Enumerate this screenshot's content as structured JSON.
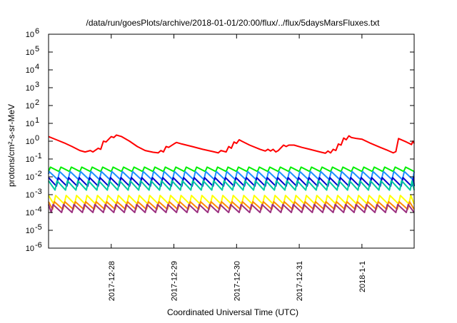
{
  "chart_data": {
    "type": "line",
    "title": "/data/run/goesPlots/archive/2018-01-01/20:00/flux/../flux/5daysMarsFluxes.txt",
    "xlabel": "Coordinated Universal Time (UTC)",
    "ylabel": "protons/cm²-s-sr-MeV",
    "yscale": "log",
    "ylim": [
      1e-06,
      1000000.0
    ],
    "xlim": [
      "2017-12-27 00:00",
      "2018-01-01 20:00"
    ],
    "xticks": [
      {
        "label": "2017-12-28",
        "value": "2017-12-28 00:00"
      },
      {
        "label": "2017-12-29",
        "value": "2017-12-29 00:00"
      },
      {
        "label": "2017-12-30",
        "value": "2017-12-30 00:00"
      },
      {
        "label": "2017-12-31",
        "value": "2017-12-31 00:00"
      },
      {
        "label": "2018-1-1",
        "value": "2018-01-01 00:00"
      }
    ],
    "yticks": [
      {
        "base": "10",
        "exp": "-6",
        "value": 1e-06
      },
      {
        "base": "10",
        "exp": "-5",
        "value": 1e-05
      },
      {
        "base": "10",
        "exp": "-4",
        "value": 0.0001
      },
      {
        "base": "10",
        "exp": "-3",
        "value": 0.001
      },
      {
        "base": "10",
        "exp": "-2",
        "value": 0.01
      },
      {
        "base": "10",
        "exp": "-1",
        "value": 0.1
      },
      {
        "base": "10",
        "exp": "0",
        "value": 1
      },
      {
        "base": "10",
        "exp": "1",
        "value": 10
      },
      {
        "base": "10",
        "exp": "2",
        "value": 100
      },
      {
        "base": "10",
        "exp": "3",
        "value": 1000
      },
      {
        "base": "10",
        "exp": "4",
        "value": 10000
      },
      {
        "base": "10",
        "exp": "5",
        "value": 100000
      },
      {
        "base": "10",
        "exp": "6",
        "value": 1000000
      }
    ],
    "grid": false,
    "legend": "none",
    "series": [
      {
        "color": "#ff0000",
        "points": [
          [
            "2017-12-27 00:00",
            1.8
          ],
          [
            "2017-12-27 03:00",
            1.2
          ],
          [
            "2017-12-27 06:00",
            0.8
          ],
          [
            "2017-12-27 09:00",
            0.5
          ],
          [
            "2017-12-27 12:00",
            0.3
          ],
          [
            "2017-12-27 14:00",
            0.25
          ],
          [
            "2017-12-27 16:00",
            0.3
          ],
          [
            "2017-12-27 17:00",
            0.25
          ],
          [
            "2017-12-27 19:00",
            0.4
          ],
          [
            "2017-12-27 20:00",
            0.35
          ],
          [
            "2017-12-27 21:00",
            1.0
          ],
          [
            "2017-12-27 22:00",
            0.9
          ],
          [
            "2017-12-28 00:00",
            1.8
          ],
          [
            "2017-12-28 01:00",
            1.6
          ],
          [
            "2017-12-28 02:00",
            2.2
          ],
          [
            "2017-12-28 04:00",
            1.8
          ],
          [
            "2017-12-28 07:00",
            1.0
          ],
          [
            "2017-12-28 10:00",
            0.5
          ],
          [
            "2017-12-28 13:00",
            0.3
          ],
          [
            "2017-12-28 16:00",
            0.24
          ],
          [
            "2017-12-28 18:00",
            0.22
          ],
          [
            "2017-12-28 19:00",
            0.3
          ],
          [
            "2017-12-28 20:00",
            0.25
          ],
          [
            "2017-12-28 21:00",
            0.5
          ],
          [
            "2017-12-28 22:00",
            0.45
          ],
          [
            "2017-12-29 00:00",
            0.7
          ],
          [
            "2017-12-29 01:00",
            0.85
          ],
          [
            "2017-12-29 03:00",
            0.7
          ],
          [
            "2017-12-29 07:00",
            0.5
          ],
          [
            "2017-12-29 11:00",
            0.35
          ],
          [
            "2017-12-29 15:00",
            0.26
          ],
          [
            "2017-12-29 17:00",
            0.22
          ],
          [
            "2017-12-29 18:00",
            0.3
          ],
          [
            "2017-12-29 20:00",
            0.25
          ],
          [
            "2017-12-29 21:00",
            0.5
          ],
          [
            "2017-12-29 22:00",
            0.4
          ],
          [
            "2017-12-29 23:00",
            0.9
          ],
          [
            "2017-12-30 00:00",
            0.75
          ],
          [
            "2017-12-30 01:00",
            1.2
          ],
          [
            "2017-12-30 02:00",
            1.0
          ],
          [
            "2017-12-30 05:00",
            0.6
          ],
          [
            "2017-12-30 09:00",
            0.35
          ],
          [
            "2017-12-30 11:00",
            0.28
          ],
          [
            "2017-12-30 12:00",
            0.35
          ],
          [
            "2017-12-30 13:00",
            0.28
          ],
          [
            "2017-12-30 14:00",
            0.35
          ],
          [
            "2017-12-30 15:00",
            0.25
          ],
          [
            "2017-12-30 16:00",
            0.3
          ],
          [
            "2017-12-30 18:00",
            0.6
          ],
          [
            "2017-12-30 19:00",
            0.5
          ],
          [
            "2017-12-30 20:00",
            0.6
          ],
          [
            "2017-12-30 22:00",
            0.6
          ],
          [
            "2017-12-31 01:00",
            0.45
          ],
          [
            "2017-12-31 04:00",
            0.35
          ],
          [
            "2017-12-31 08:00",
            0.25
          ],
          [
            "2017-12-31 10:00",
            0.21
          ],
          [
            "2017-12-31 11:00",
            0.28
          ],
          [
            "2017-12-31 12:00",
            0.22
          ],
          [
            "2017-12-31 13:00",
            0.35
          ],
          [
            "2017-12-31 14:00",
            0.3
          ],
          [
            "2017-12-31 15:00",
            0.7
          ],
          [
            "2017-12-31 16:00",
            0.6
          ],
          [
            "2017-12-31 17:00",
            1.5
          ],
          [
            "2017-12-31 18:00",
            1.2
          ],
          [
            "2017-12-31 19:00",
            2.0
          ],
          [
            "2017-12-31 20:00",
            1.6
          ],
          [
            "2017-12-31 22:00",
            1.4
          ],
          [
            "2018-01-01 00:00",
            1.3
          ],
          [
            "2018-01-01 03:00",
            0.8
          ],
          [
            "2018-01-01 07:00",
            0.45
          ],
          [
            "2018-01-01 10:00",
            0.3
          ],
          [
            "2018-01-01 12:00",
            0.22
          ],
          [
            "2018-01-01 13:00",
            0.26
          ],
          [
            "2018-01-01 14:00",
            1.4
          ],
          [
            "2018-01-01 17:00",
            0.9
          ],
          [
            "2018-01-01 19:00",
            0.65
          ],
          [
            "2018-01-01 19:30",
            1.0
          ],
          [
            "2018-01-01 20:00",
            0.75
          ]
        ]
      },
      {
        "color": "#00ee00",
        "sawtooth": true,
        "peak": 0.035,
        "trough": 0.02,
        "phase_hours": 0
      },
      {
        "color": "#1e90ff",
        "sawtooth": true,
        "peak": 0.02,
        "trough": 0.007,
        "phase_hours": 0.5
      },
      {
        "color": "#0000cd",
        "sawtooth": true,
        "peak": 0.009,
        "trough": 0.003,
        "phase_hours": 1
      },
      {
        "color": "#00c8a0",
        "sawtooth": true,
        "peak": 0.006,
        "trough": 0.0018,
        "phase_hours": 1.5
      },
      {
        "color": "#ffff00",
        "sawtooth": true,
        "peak": 0.0009,
        "trough": 0.0003,
        "phase_hours": 2
      },
      {
        "color": "#ff8c00",
        "sawtooth": true,
        "peak": 0.0004,
        "trough": 0.00015,
        "phase_hours": 2.5
      },
      {
        "color": "#9b3080",
        "sawtooth": true,
        "peak": 0.00028,
        "trough": 0.0001,
        "phase_hours": 3
      }
    ],
    "sawtooth_period_hours": 4
  }
}
